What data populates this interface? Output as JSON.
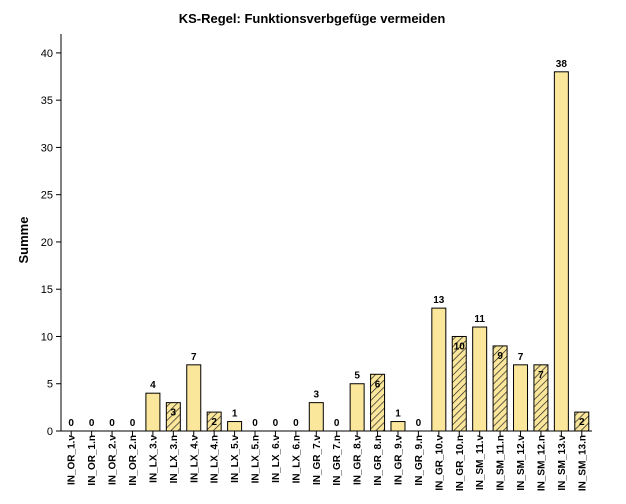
{
  "chart_data": {
    "type": "bar",
    "title": "KS-Regel: Funktionsverbgefüge vermeiden",
    "xlabel": "",
    "ylabel": "Summe",
    "ylim": [
      0,
      42
    ],
    "yticks": [
      0,
      5,
      10,
      15,
      20,
      25,
      30,
      35,
      40
    ],
    "grid": false,
    "legend": "none",
    "categories": [
      "IN_OR_1.v",
      "IN_OR_1.n",
      "IN_OR_2.v",
      "IN_OR_2.n",
      "IN_LX_3.v",
      "IN_LX_3.n",
      "IN_LX_4.v",
      "IN_LX_4.n",
      "IN_LX_5.v",
      "IN_LX_5.n",
      "IN_LX_6.v",
      "IN_LX_6.n",
      "IN_GR_7.v",
      "IN_GR_7.n",
      "IN_GR_8.v",
      "IN_GR_8.n",
      "IN_GR_9.v",
      "IN_GR_9.n",
      "IN_GR_10.v",
      "IN_GR_10.n",
      "IN_SM_11.v",
      "IN_SM_11.n",
      "IN_SM_12.v",
      "IN_SM_12.n",
      "IN_SM_13.v",
      "IN_SM_13.n"
    ],
    "values": [
      0,
      0,
      0,
      0,
      4,
      3,
      7,
      2,
      1,
      0,
      0,
      0,
      3,
      0,
      5,
      6,
      1,
      0,
      13,
      10,
      11,
      9,
      7,
      7,
      38,
      2
    ],
    "patterns": [
      "solid",
      "hatched",
      "solid",
      "hatched",
      "solid",
      "hatched",
      "solid",
      "hatched",
      "solid",
      "hatched",
      "solid",
      "hatched",
      "solid",
      "hatched",
      "solid",
      "hatched",
      "solid",
      "hatched",
      "solid",
      "hatched",
      "solid",
      "hatched",
      "solid",
      "hatched",
      "solid",
      "hatched"
    ],
    "colors": {
      "bar_fill": "#fbe79b",
      "hatch_line": "#222222",
      "outline": "#000000"
    }
  }
}
